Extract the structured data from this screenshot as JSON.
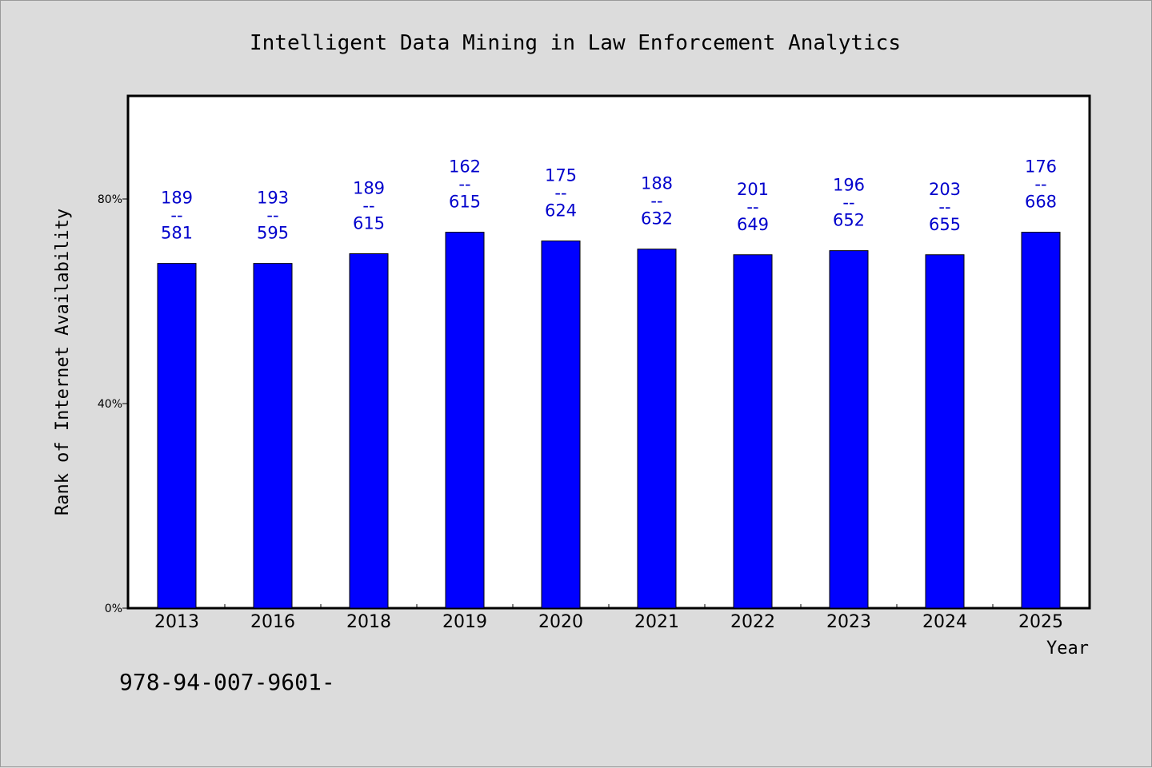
{
  "chart_data": {
    "type": "bar",
    "title": "Intelligent Data Mining in Law Enforcement Analytics",
    "xlabel": "Year",
    "ylabel": "Rank of Internet Availability",
    "footnote": "978-94-007-9601-",
    "categories": [
      "2013",
      "2016",
      "2018",
      "2019",
      "2020",
      "2021",
      "2022",
      "2023",
      "2024",
      "2025"
    ],
    "values": [
      67.4,
      67.4,
      69.3,
      73.5,
      71.8,
      70.2,
      69.1,
      69.9,
      69.1,
      73.5
    ],
    "value_labels": [
      {
        "top": "189",
        "sep": "--",
        "bottom": "581"
      },
      {
        "top": "193",
        "sep": "--",
        "bottom": "595"
      },
      {
        "top": "189",
        "sep": "--",
        "bottom": "615"
      },
      {
        "top": "162",
        "sep": "--",
        "bottom": "615"
      },
      {
        "top": "175",
        "sep": "--",
        "bottom": "624"
      },
      {
        "top": "188",
        "sep": "--",
        "bottom": "632"
      },
      {
        "top": "201",
        "sep": "--",
        "bottom": "649"
      },
      {
        "top": "196",
        "sep": "--",
        "bottom": "652"
      },
      {
        "top": "203",
        "sep": "--",
        "bottom": "655"
      },
      {
        "top": "176",
        "sep": "--",
        "bottom": "668"
      }
    ],
    "yticks": [
      0,
      40,
      80
    ],
    "ytick_labels": [
      "0%",
      "40%",
      "80%"
    ],
    "ylim": [
      0,
      100
    ],
    "grid": false,
    "legend": "none",
    "colors": {
      "bar": "#0000ff",
      "label": "#0000cc",
      "background": "#dcdcdc",
      "plot_background": "#ffffff"
    }
  }
}
